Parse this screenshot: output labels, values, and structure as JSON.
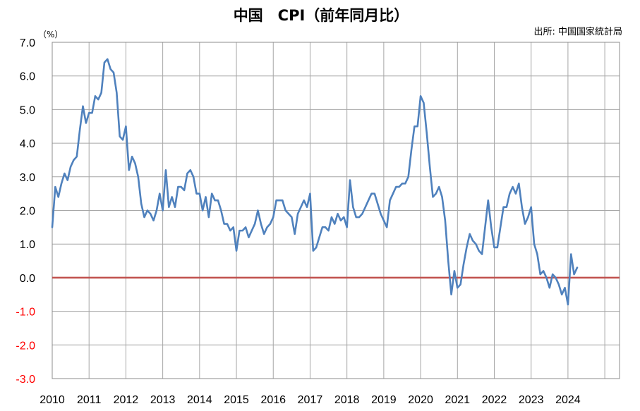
{
  "chart_data": {
    "type": "line",
    "title": "中国　CPI（前年同月比）",
    "source": "出所: 中国国家統計局",
    "unit_label": "（%）",
    "ylim": [
      -3.0,
      7.0
    ],
    "y_ticks": [
      "7.0",
      "6.0",
      "5.0",
      "4.0",
      "3.0",
      "2.0",
      "1.0",
      "0.0",
      "-1.0",
      "-2.0",
      "-3.0"
    ],
    "x_ticks": [
      "2010",
      "2011",
      "2012",
      "2013",
      "2014",
      "2015",
      "2016",
      "2017",
      "2018",
      "2019",
      "2020",
      "2021",
      "2022",
      "2023",
      "2024"
    ],
    "grid": true,
    "x_start": "2010-01",
    "zero_line_color": "#c0504d",
    "line_color": "#4f81bd",
    "negative_label_color": "#ff0000",
    "series": [
      {
        "values": [
          1.5,
          2.7,
          2.4,
          2.8,
          3.1,
          2.9,
          3.3,
          3.5,
          3.6,
          4.4,
          5.1,
          4.6,
          4.9,
          4.9,
          5.4,
          5.3,
          5.5,
          6.4,
          6.5,
          6.2,
          6.1,
          5.5,
          4.2,
          4.1,
          4.5,
          3.2,
          3.6,
          3.4,
          3.0,
          2.2,
          1.8,
          2.0,
          1.9,
          1.7,
          2.0,
          2.5,
          2.0,
          3.2,
          2.1,
          2.4,
          2.1,
          2.7,
          2.7,
          2.6,
          3.1,
          3.2,
          3.0,
          2.5,
          2.5,
          2.0,
          2.4,
          1.8,
          2.5,
          2.3,
          2.3,
          2.0,
          1.6,
          1.6,
          1.4,
          1.5,
          0.8,
          1.4,
          1.4,
          1.5,
          1.2,
          1.4,
          1.6,
          2.0,
          1.6,
          1.3,
          1.5,
          1.6,
          1.8,
          2.3,
          2.3,
          2.3,
          2.0,
          1.9,
          1.8,
          1.3,
          1.9,
          2.1,
          2.3,
          2.1,
          2.5,
          0.8,
          0.9,
          1.2,
          1.5,
          1.5,
          1.4,
          1.8,
          1.6,
          1.9,
          1.7,
          1.8,
          1.5,
          2.9,
          2.1,
          1.8,
          1.8,
          1.9,
          2.1,
          2.3,
          2.5,
          2.5,
          2.2,
          1.9,
          1.7,
          1.5,
          2.3,
          2.5,
          2.7,
          2.7,
          2.8,
          2.8,
          3.0,
          3.8,
          4.5,
          4.5,
          5.4,
          5.2,
          4.3,
          3.3,
          2.4,
          2.5,
          2.7,
          2.4,
          1.7,
          0.5,
          -0.5,
          0.2,
          -0.3,
          -0.2,
          0.4,
          0.9,
          1.3,
          1.1,
          1.0,
          0.8,
          0.7,
          1.5,
          2.3,
          1.5,
          0.9,
          0.9,
          1.5,
          2.1,
          2.1,
          2.5,
          2.7,
          2.5,
          2.8,
          2.1,
          1.6,
          1.8,
          2.1,
          1.0,
          0.7,
          0.1,
          0.2,
          0.0,
          -0.3,
          0.1,
          0.0,
          -0.2,
          -0.5,
          -0.3,
          -0.8,
          0.7,
          0.1,
          0.3
        ]
      }
    ]
  }
}
